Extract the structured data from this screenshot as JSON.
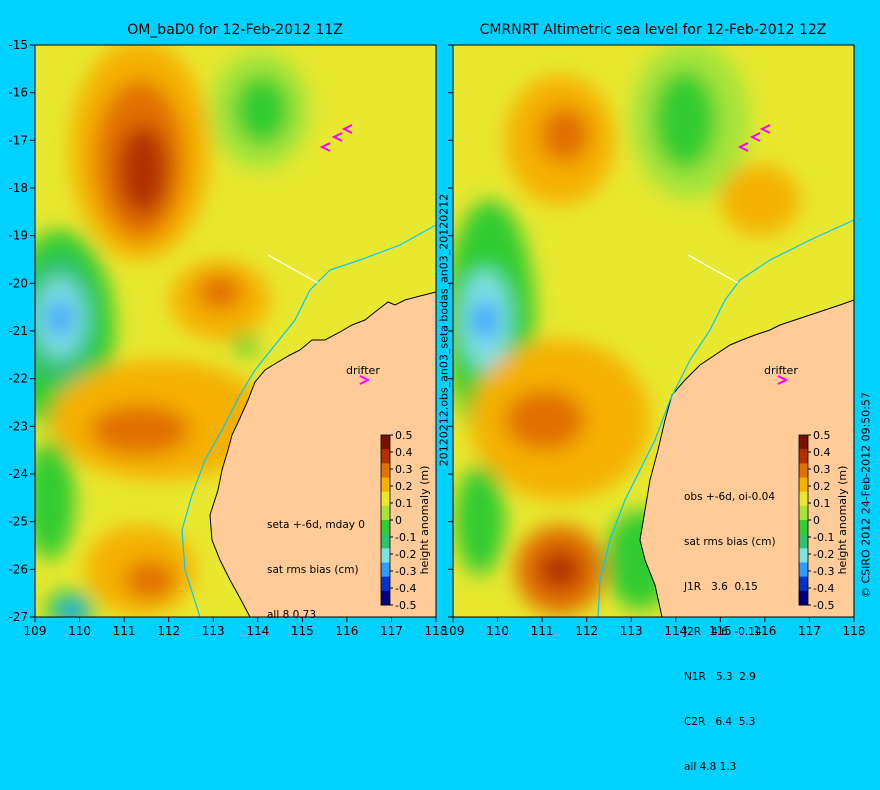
{
  "left_panel": {
    "title": "OM_baD0 for 12-Feb-2012 11Z",
    "stats_lines": [
      "seta +-6d, mday 0",
      "sat rms bias (cm)",
      "all 8 0.73"
    ],
    "drifter_label": "drifter"
  },
  "right_panel": {
    "title": "CMRNRT Altimetric sea level  for 12-Feb-2012 12Z",
    "stats_lines": [
      "obs +-6d, oi-0.04",
      "sat rms bias (cm)",
      "J1R   3.6  0.15",
      "J2R   4.6  -0.14",
      "N1R   5.3  2.9",
      "C2R   6.4  5.3",
      "all 4.8 1.3"
    ],
    "drifter_label": "drifter"
  },
  "between_panels_label": "20120212.obs_an03_seta  bodas_an03_20120212",
  "right_side_label": "© CSIRO 2012   24-Feb-2012 09:50:57",
  "axes": {
    "lon_ticks": [
      "109",
      "110",
      "111",
      "112",
      "113",
      "114",
      "115",
      "116",
      "117",
      "118"
    ],
    "lat_ticks": [
      "-15",
      "-16",
      "-17",
      "-18",
      "-19",
      "-20",
      "-21",
      "-22",
      "-23",
      "-24",
      "-25",
      "-26",
      "-27"
    ],
    "lon_range": [
      109,
      118
    ],
    "lat_range": [
      -27,
      -15
    ]
  },
  "colorbar": {
    "label": "height anomaly (m)",
    "ticks": [
      "0.5",
      "0.4",
      "0.3",
      "0.2",
      "0.1",
      "0",
      "-0.1",
      "-0.2",
      "-0.3",
      "-0.4",
      "-0.5"
    ],
    "range": [
      -0.5,
      0.5
    ],
    "colors": [
      "#00007e",
      "#0033cc",
      "#2f9bff",
      "#7fe0e6",
      "#30c070",
      "#33cc33",
      "#a6e43a",
      "#e8e830",
      "#f5b000",
      "#e07000",
      "#b03000",
      "#7a1000"
    ]
  },
  "colors": {
    "background": "#00d2ff",
    "land": "#ffcc99",
    "coastline": "#000000",
    "isobath": "#00c8ff",
    "drifter": "#ff00ff"
  }
}
